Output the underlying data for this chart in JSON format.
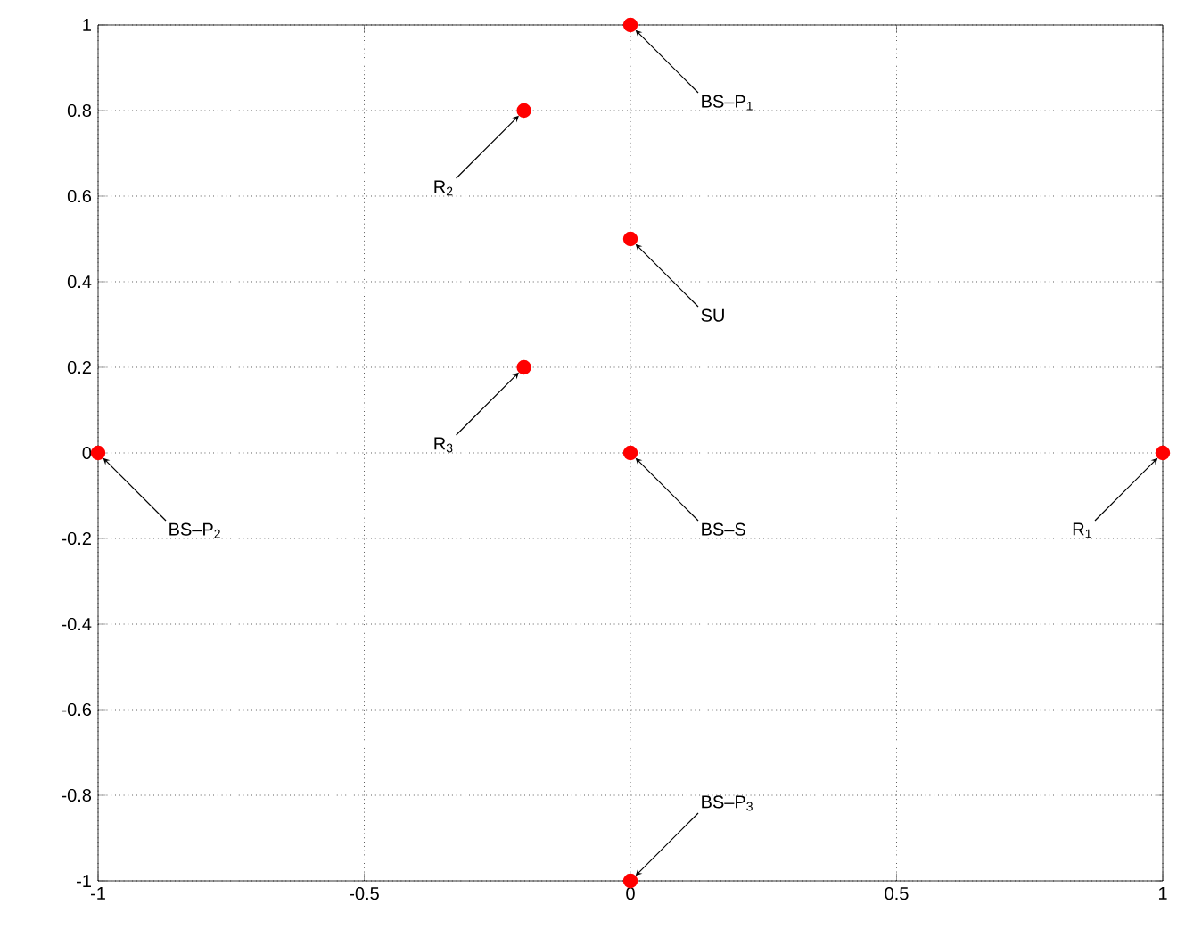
{
  "chart_data": {
    "type": "scatter",
    "series": [
      {
        "color": "#ff0000",
        "x": [
          0,
          -0.2,
          0,
          -0.2,
          -1,
          0,
          1,
          0
        ],
        "values": [
          1,
          0.8,
          0.5,
          0.2,
          0,
          0,
          0,
          -1
        ]
      }
    ],
    "marker": "circle",
    "xlim": [
      -1,
      1
    ],
    "ylim": [
      -1,
      1
    ],
    "xticks": [
      -1,
      -0.5,
      0,
      0.5,
      1
    ],
    "yticks": [
      -1,
      -0.8,
      -0.6,
      -0.4,
      -0.2,
      0,
      0.2,
      0.4,
      0.6,
      0.8,
      1
    ],
    "grid": true,
    "annotations": [
      {
        "text": "BS–P$_{1}$",
        "x": 0,
        "y": 1
      },
      {
        "text": "R$_{2}$",
        "x": -0.2,
        "y": 0.8
      },
      {
        "text": "SU",
        "x": 0,
        "y": 0.5
      },
      {
        "text": "R$_{3}$",
        "x": -0.2,
        "y": 0.2
      },
      {
        "text": "BS–P$_{2}$",
        "x": -1,
        "y": 0
      },
      {
        "text": "BS–S",
        "x": 0,
        "y": 0
      },
      {
        "text": "R$_{1}$",
        "x": 1,
        "y": 0
      },
      {
        "text": "BS–P$_{3}$",
        "x": 0,
        "y": -1
      }
    ]
  }
}
